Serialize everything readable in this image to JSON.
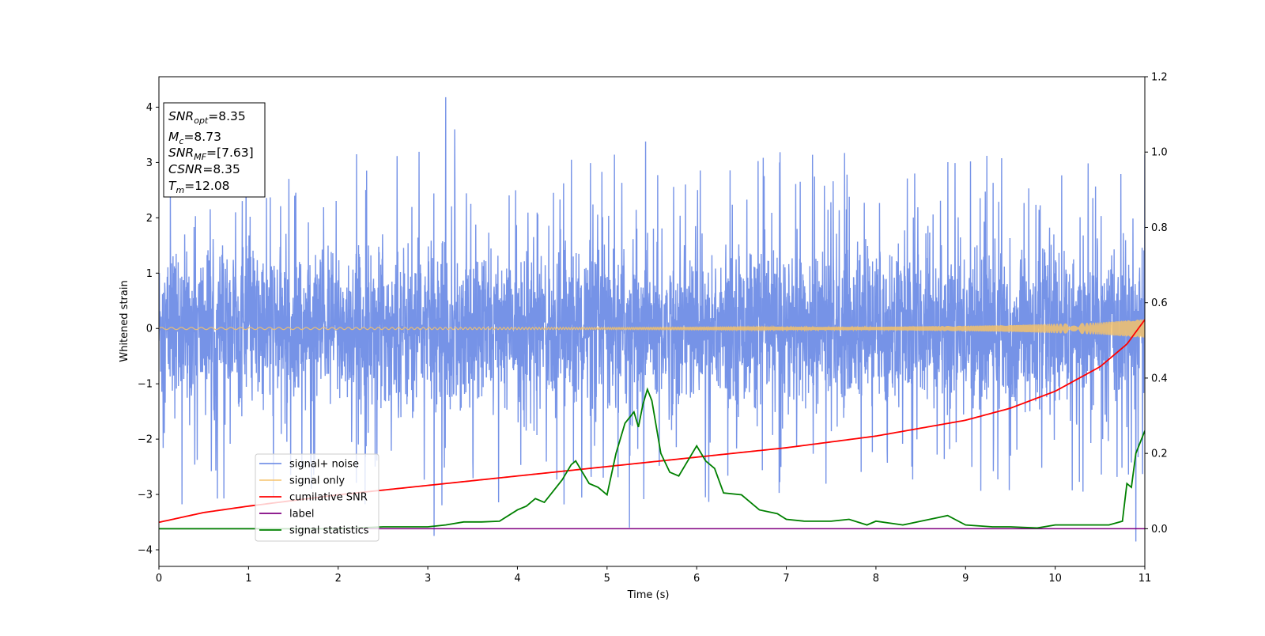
{
  "chart_data": {
    "type": "line",
    "xlabel": "Time (s)",
    "ylabel": "Whitened strain",
    "xlim": [
      0,
      11
    ],
    "ylim": [
      -4.3,
      4.55
    ],
    "y2lim": [
      -0.1,
      1.2
    ],
    "xticks": [
      0,
      1,
      2,
      3,
      4,
      5,
      6,
      7,
      8,
      9,
      10,
      11
    ],
    "yticks": [
      -4,
      -3,
      -2,
      -1,
      0,
      1,
      2,
      3,
      4
    ],
    "y2ticks": [
      0.0,
      0.2,
      0.4,
      0.6,
      0.8,
      1.0,
      1.2
    ],
    "y2tick_labels": [
      "0.0",
      "0.2",
      "0.4",
      "0.6",
      "0.8",
      "1.0",
      "1.2"
    ],
    "grid": false,
    "legend_position": "lower-left",
    "colors": {
      "noise": "#6f8de6",
      "signal": "#f5c26b",
      "snr": "#ff0000",
      "label": "#800080",
      "stats": "#008000"
    },
    "series": [
      {
        "name": "signal+ noise",
        "axis": "left",
        "description": "dense noise band roughly between -2.3 and 2.3 with occasional spikes",
        "spikes": [
          [
            3.2,
            4.18
          ],
          [
            3.07,
            -3.75
          ],
          [
            5.25,
            -3.6
          ],
          [
            10.9,
            -3.85
          ],
          [
            5.43,
            3.38
          ],
          [
            3.3,
            3.6
          ]
        ]
      },
      {
        "name": "signal only",
        "axis": "left",
        "amplitude_envelope": {
          "x": [
            0,
            5,
            8,
            9.5,
            10.5,
            11
          ],
          "y": [
            0.02,
            0.02,
            0.03,
            0.06,
            0.11,
            0.17
          ]
        }
      },
      {
        "name": "cumilative SNR",
        "axis": "right",
        "x": [
          0,
          0.5,
          1,
          2,
          3,
          4,
          5,
          6,
          7,
          8,
          9,
          9.5,
          10,
          10.5,
          10.8,
          11
        ],
        "y": [
          0.017,
          0.043,
          0.06,
          0.09,
          0.115,
          0.14,
          0.165,
          0.19,
          0.215,
          0.246,
          0.288,
          0.32,
          0.365,
          0.43,
          0.49,
          0.555
        ]
      },
      {
        "name": "label",
        "axis": "right",
        "x": [
          0,
          11
        ],
        "y": [
          0,
          0
        ]
      },
      {
        "name": "signal statistics",
        "axis": "right",
        "x": [
          0,
          0.5,
          1,
          1.5,
          2,
          2.5,
          3,
          3.2,
          3.4,
          3.6,
          3.8,
          4,
          4.1,
          4.2,
          4.3,
          4.4,
          4.5,
          4.6,
          4.65,
          4.7,
          4.8,
          4.9,
          5,
          5.1,
          5.2,
          5.3,
          5.35,
          5.4,
          5.45,
          5.5,
          5.6,
          5.7,
          5.8,
          5.9,
          6,
          6.1,
          6.2,
          6.3,
          6.5,
          6.7,
          6.9,
          7,
          7.2,
          7.5,
          7.7,
          7.9,
          8,
          8.3,
          8.5,
          8.7,
          8.8,
          9,
          9.3,
          9.5,
          9.8,
          10,
          10.3,
          10.6,
          10.75,
          10.8,
          10.85,
          10.9,
          11
        ],
        "y": [
          0,
          0,
          0,
          0,
          0,
          0.005,
          0.005,
          0.01,
          0.018,
          0.018,
          0.02,
          0.05,
          0.06,
          0.08,
          0.07,
          0.1,
          0.13,
          0.17,
          0.18,
          0.16,
          0.12,
          0.11,
          0.09,
          0.2,
          0.28,
          0.31,
          0.27,
          0.33,
          0.37,
          0.34,
          0.2,
          0.15,
          0.14,
          0.18,
          0.22,
          0.18,
          0.16,
          0.095,
          0.09,
          0.05,
          0.04,
          0.025,
          0.02,
          0.02,
          0.025,
          0.01,
          0.02,
          0.01,
          0.02,
          0.03,
          0.035,
          0.01,
          0.005,
          0.005,
          0.002,
          0.01,
          0.01,
          0.01,
          0.02,
          0.12,
          0.11,
          0.2,
          0.26
        ]
      }
    ],
    "annotation_box": [
      {
        "symbol": "SNR",
        "sub": "opt",
        "value": "=8.35"
      },
      {
        "symbol": "M",
        "sub": "c",
        "value": "=8.73"
      },
      {
        "symbol": "SNR",
        "sub": "MF",
        "value": "=[7.63]"
      },
      {
        "symbol": "CSNR",
        "sub": "",
        "value": "=8.35"
      },
      {
        "symbol": "T",
        "sub": "m",
        "value": "=12.08"
      }
    ]
  }
}
